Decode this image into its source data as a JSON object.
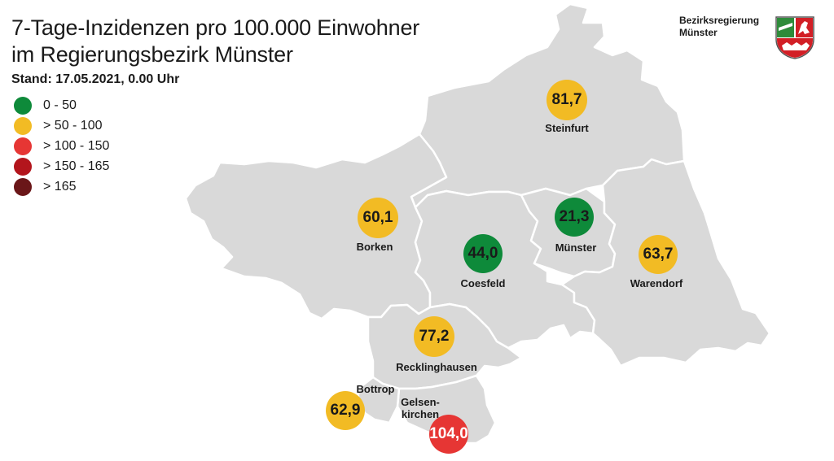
{
  "header": {
    "title_line1": "7-Tage-Inzidenzen pro 100.000 Einwohner",
    "title_line2": "im Regierungsbezirk Münster",
    "stand": "Stand: 17.05.2021, 0.00 Uhr"
  },
  "org": {
    "line1": "Bezirksregierung",
    "line2": "Münster"
  },
  "legend": [
    {
      "label": "0 - 50",
      "color": "#0e8a3a"
    },
    {
      "label": "> 50 - 100",
      "color": "#f2bb24"
    },
    {
      "label": "> 100 - 150",
      "color": "#e63634"
    },
    {
      "label": "> 150 - 165",
      "color": "#b3151c"
    },
    {
      "label": "> 165",
      "color": "#6a1618"
    }
  ],
  "districts": {
    "steinfurt": {
      "name": "Steinfurt",
      "value": "81,7",
      "color": "#f2bb24"
    },
    "borken": {
      "name": "Borken",
      "value": "60,1",
      "color": "#f2bb24"
    },
    "muenster": {
      "name": "Münster",
      "value": "21,3",
      "color": "#0e8a3a"
    },
    "coesfeld": {
      "name": "Coesfeld",
      "value": "44,0",
      "color": "#0e8a3a"
    },
    "warendorf": {
      "name": "Warendorf",
      "value": "63,7",
      "color": "#f2bb24"
    },
    "recklinghausen": {
      "name": "Recklinghausen",
      "value": "77,2",
      "color": "#f2bb24"
    },
    "bottrop": {
      "name": "Bottrop",
      "value": "62,9",
      "color": "#f2bb24"
    },
    "gelsenkirchen": {
      "name": "Gelsen-\nkirchen",
      "value": "104,0",
      "color": "#e63634"
    }
  }
}
